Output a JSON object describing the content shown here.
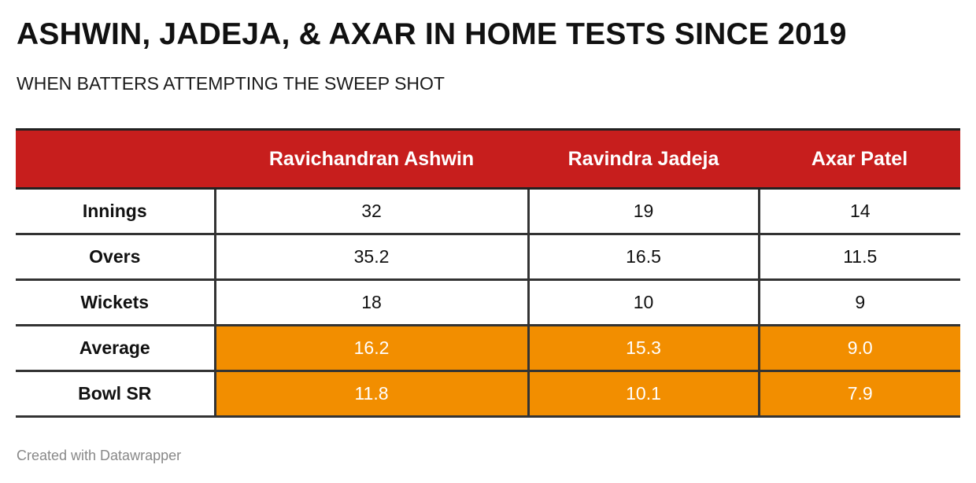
{
  "title": "ASHWIN, JADEJA, & AXAR IN HOME TESTS SINCE 2019",
  "subtitle": "WHEN BATTERS ATTEMPTING THE SWEEP SHOT",
  "footer": "Created with Datawrapper",
  "colors": {
    "header_bg": "#c71e1d",
    "highlight_bg": "#f28e00"
  },
  "table": {
    "columns": [
      "",
      "Ravichandran Ashwin",
      "Ravindra Jadeja",
      "Axar Patel"
    ],
    "rows": [
      {
        "label": "Innings",
        "values": [
          "32",
          "19",
          "14"
        ],
        "highlight": false
      },
      {
        "label": "Overs",
        "values": [
          "35.2",
          "16.5",
          "11.5"
        ],
        "highlight": false
      },
      {
        "label": "Wickets",
        "values": [
          "18",
          "10",
          "9"
        ],
        "highlight": false
      },
      {
        "label": "Average",
        "values": [
          "16.2",
          "15.3",
          "9.0"
        ],
        "highlight": true
      },
      {
        "label": "Bowl SR",
        "values": [
          "11.8",
          "10.1",
          "7.9"
        ],
        "highlight": true
      }
    ]
  },
  "chart_data": {
    "type": "table",
    "title": "ASHWIN, JADEJA, & AXAR IN HOME TESTS SINCE 2019",
    "subtitle": "WHEN BATTERS ATTEMPTING THE SWEEP SHOT",
    "columns": [
      "Ravichandran Ashwin",
      "Ravindra Jadeja",
      "Axar Patel"
    ],
    "rows": [
      "Innings",
      "Overs",
      "Wickets",
      "Average",
      "Bowl SR"
    ],
    "values": [
      [
        32,
        19,
        14
      ],
      [
        35.2,
        16.5,
        11.5
      ],
      [
        18,
        10,
        9
      ],
      [
        16.2,
        15.3,
        9.0
      ],
      [
        11.8,
        10.1,
        7.9
      ]
    ],
    "highlighted_rows": [
      "Average",
      "Bowl SR"
    ]
  }
}
